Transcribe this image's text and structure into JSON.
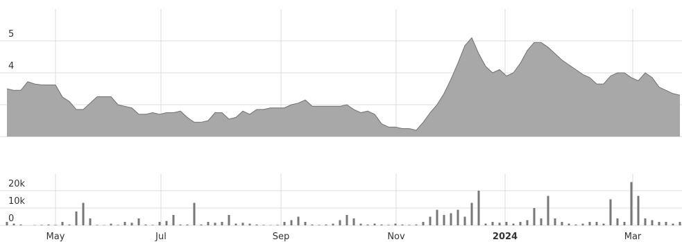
{
  "chart_data": [
    {
      "type": "area",
      "color": "#a8a8a8",
      "line_color": "#707070",
      "values": [
        3.5,
        3.45,
        3.45,
        3.72,
        3.65,
        3.62,
        3.62,
        3.62,
        3.24,
        3.1,
        2.85,
        2.85,
        3.05,
        3.25,
        3.25,
        3.25,
        3.0,
        2.95,
        2.9,
        2.7,
        2.7,
        2.75,
        2.7,
        2.75,
        2.75,
        2.8,
        2.6,
        2.45,
        2.45,
        2.5,
        2.75,
        2.75,
        2.55,
        2.6,
        2.8,
        2.7,
        2.85,
        2.85,
        2.9,
        2.9,
        2.9,
        3.0,
        3.05,
        3.15,
        2.95,
        2.95,
        2.95,
        2.95,
        2.95,
        3.0,
        2.85,
        2.75,
        2.8,
        2.7,
        2.4,
        2.3,
        2.3,
        2.25,
        2.25,
        2.2,
        2.45,
        2.75,
        3.0,
        3.35,
        3.8,
        4.3,
        4.85,
        5.1,
        4.6,
        4.2,
        4.0,
        4.1,
        3.9,
        4.0,
        4.3,
        4.7,
        4.95,
        4.95,
        4.8,
        4.6,
        4.4,
        4.25,
        4.1,
        3.95,
        3.85,
        3.65,
        3.65,
        3.9,
        4.0,
        4.0,
        3.85,
        3.75,
        4.0,
        3.85,
        3.55,
        3.45,
        3.35,
        3.3
      ],
      "xlim": [
        0,
        97
      ],
      "ylim": [
        2,
        6
      ],
      "yticks": [
        2,
        3,
        4,
        5
      ],
      "grid": true
    },
    {
      "type": "bar",
      "color": "#777777",
      "values": [
        2000,
        1000,
        500,
        0,
        200,
        300,
        500,
        300,
        2000,
        500,
        8000,
        13000,
        4000,
        300,
        200,
        1000,
        300,
        2000,
        1500,
        4000,
        500,
        300,
        2000,
        2500,
        6000,
        500,
        500,
        13000,
        500,
        2000,
        1500,
        2000,
        6000,
        1000,
        1500,
        1000,
        500,
        300,
        200,
        300,
        2000,
        3000,
        5000,
        2000,
        500,
        300,
        500,
        1000,
        3000,
        6000,
        4000,
        1000,
        500,
        1000,
        500,
        300,
        1000,
        500,
        300,
        500,
        2000,
        5000,
        9000,
        6000,
        7000,
        9000,
        5000,
        13000,
        20000,
        1000,
        2000,
        1500,
        2000,
        1000,
        2000,
        3000,
        10000,
        4000,
        17000,
        4000,
        2000,
        1000,
        500,
        1000,
        2000,
        2000,
        1000,
        15000,
        4000,
        2000,
        25000,
        17000,
        4000,
        3000,
        2000,
        2000,
        1000,
        2000
      ],
      "xlim": [
        0,
        97
      ],
      "ylim": [
        0,
        30000
      ],
      "yticks": [
        0,
        {
          "value": 10000,
          "label": "10k"
        },
        {
          "value": 20000,
          "label": "20k"
        }
      ],
      "xticks": [
        {
          "value": 7,
          "label": "May"
        },
        {
          "value": 22.2,
          "label": "Jul"
        },
        {
          "value": 39.5,
          "label": "Sep"
        },
        {
          "value": 56.1,
          "label": "Nov"
        },
        {
          "value": 71.8,
          "label": "2024"
        },
        {
          "value": 90.2,
          "label": "Mar"
        }
      ],
      "grid": true
    }
  ]
}
